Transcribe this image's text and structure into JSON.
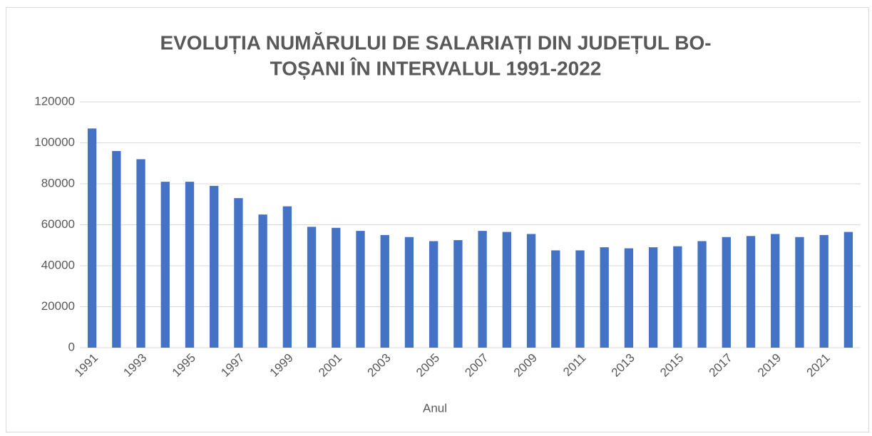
{
  "chart_data": {
    "type": "bar",
    "title": [
      "EVOLUȚIA NUMĂRULUI DE SALARIAȚI DIN JUDEȚUL BO-",
      "TOȘANI ÎN INTERVALUL 1991-2022"
    ],
    "x_label": "Anul",
    "categories": [
      "1991",
      null,
      "1993",
      null,
      "1995",
      null,
      "1997",
      null,
      "1999",
      null,
      "2001",
      null,
      "2003",
      null,
      "2005",
      null,
      "2007",
      null,
      "2009",
      null,
      "2011",
      null,
      "2013",
      null,
      "2015",
      null,
      "2017",
      null,
      "2019",
      null,
      "2021",
      null
    ],
    "values": [
      107000,
      96000,
      92000,
      81000,
      81000,
      79000,
      73000,
      65000,
      69000,
      59000,
      58500,
      57000,
      55000,
      54000,
      52000,
      52500,
      57000,
      56500,
      55500,
      47500,
      47500,
      49000,
      48500,
      49000,
      49500,
      52000,
      54000,
      54500,
      55500,
      54000,
      55000,
      56500
    ],
    "color": "#4472c4",
    "ylim": [
      0,
      120000
    ],
    "yticks": [
      0,
      20000,
      40000,
      60000,
      80000,
      100000,
      120000
    ],
    "grid": true
  }
}
